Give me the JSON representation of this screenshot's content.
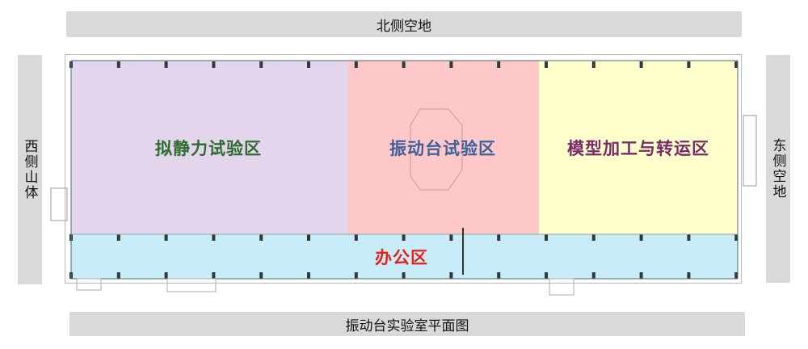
{
  "surroundings": {
    "north": "北侧空地",
    "west": "西侧山体",
    "east": "东侧空地"
  },
  "caption": "振动台实验室平面图",
  "zones": [
    {
      "name": "拟静力试验区",
      "fill": "#e2d5ec",
      "text_color": "#2e6b2e"
    },
    {
      "name": "振动台试验区",
      "fill": "#ffc8c8",
      "text_color": "#3d5f9c"
    },
    {
      "name": "模型加工与转运区",
      "fill": "#ffffcc",
      "text_color": "#7a2a6a"
    },
    {
      "name": "办公区",
      "fill": "#c8ecf8",
      "text_color": "#e8201a"
    }
  ]
}
